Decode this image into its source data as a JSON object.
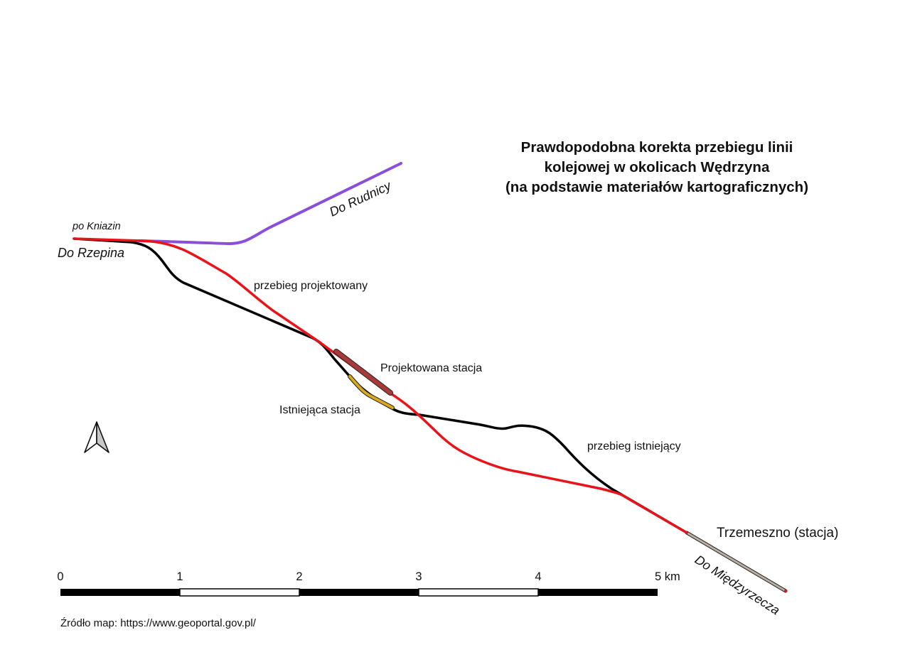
{
  "title": {
    "line1": "Prawdopodobna korekta przebiegu linii",
    "line2": "kolejowej w okolicach Wędrzyna",
    "line3": "(na podstawie materiałów kartograficznych)"
  },
  "labels": {
    "do_rudnicy": "Do Rudnicy",
    "po_kniazin": "po Kniazin",
    "do_rzepina": "Do Rzepina",
    "przebieg_projektowany": "przebieg projektowany",
    "projektowana_stacja": "Projektowana stacja",
    "istniejaca_stacja": "Istniejąca stacja",
    "przebieg_istniejacy": "przebieg istniejący",
    "trzemeszno": "Trzemeszno (stacja)",
    "do_miedzyrzecza": "Do Międzyrzecza"
  },
  "scale_bar": {
    "ticks": [
      "0",
      "1",
      "2",
      "3",
      "4",
      "5 km"
    ]
  },
  "source": "Źródło map: https://www.geoportal.gov.pl/",
  "colors": {
    "projected_route": "#e8141b",
    "existing_route": "#000000",
    "rudnica_branch": "#8a4fd8",
    "projected_station": "#a83a3a",
    "existing_station": "#d9a91c",
    "miedzyrzecz_line": "#b8b0a4"
  },
  "north_arrow": {
    "icon": "north-arrow-icon"
  }
}
